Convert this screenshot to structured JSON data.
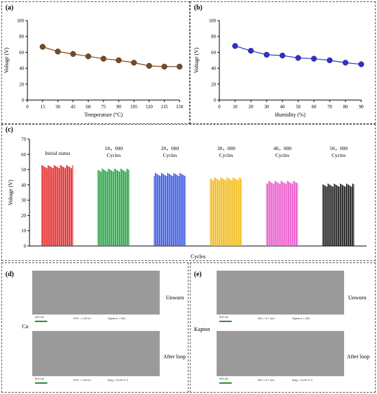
{
  "panels": {
    "a": "(a)",
    "b": "(b)",
    "c": "(c)",
    "d": "(d)",
    "e": "(e)"
  },
  "chart_data": [
    {
      "id": "a",
      "type": "line",
      "xlabel": "Temperature (°C)",
      "ylabel": "Voltage (V)",
      "xlim": [
        0,
        150
      ],
      "ylim": [
        0,
        100
      ],
      "xticks": [
        "0",
        "15",
        "30",
        "45",
        "60",
        "75",
        "90",
        "105",
        "120",
        "135",
        "150"
      ],
      "yticks": [
        "0",
        "20",
        "40",
        "60",
        "80",
        "100"
      ],
      "x": [
        15,
        30,
        45,
        60,
        75,
        90,
        105,
        120,
        135,
        150
      ],
      "y": [
        67,
        61,
        58,
        55,
        52,
        50,
        47,
        43,
        42,
        42
      ],
      "color": "#7a4a1f"
    },
    {
      "id": "b",
      "type": "line",
      "xlabel": "Humidity (%)",
      "ylabel": "Voltage (V)",
      "xlim": [
        0,
        90
      ],
      "ylim": [
        0,
        100
      ],
      "xticks": [
        "0",
        "10",
        "20",
        "30",
        "40",
        "50",
        "60",
        "70",
        "80",
        "90"
      ],
      "yticks": [
        "0",
        "20",
        "40",
        "60",
        "80",
        "100"
      ],
      "x": [
        10,
        20,
        30,
        40,
        50,
        60,
        70,
        80,
        90
      ],
      "y": [
        68,
        62,
        57,
        56,
        53,
        52,
        50,
        47,
        45
      ],
      "color": "#3030d0"
    },
    {
      "id": "c",
      "type": "bar",
      "xlabel": "Cycles",
      "ylabel": "Voltage (V)",
      "ylim": [
        0,
        70
      ],
      "yticks": [
        "0",
        "10",
        "20",
        "30",
        "40",
        "50",
        "60",
        "70"
      ],
      "groups": [
        {
          "label1": "Initial status",
          "label2": "",
          "value": 53,
          "color": "#e21b1b"
        },
        {
          "label1": "10，000",
          "label2": "Cycles",
          "value": 51,
          "color": "#1a9e3a"
        },
        {
          "label1": "20，000",
          "label2": "Cycles",
          "value": 48,
          "color": "#2d4fe0"
        },
        {
          "label1": "30，000",
          "label2": "Cycles",
          "value": 45,
          "color": "#f2b705"
        },
        {
          "label1": "40，000",
          "label2": "Cycles",
          "value": 43,
          "color": "#e84fc8"
        },
        {
          "label1": "50，000",
          "label2": "Cycles",
          "value": 41,
          "color": "#111111"
        }
      ]
    }
  ],
  "sem": {
    "d_material": "Cu",
    "e_material": "Kapton",
    "unworn": "Unworn",
    "after_loop": "After loop",
    "scale": "500 nm",
    "eht": "EHT = 3.00 kV",
    "wd": "WD = 8.7 mm",
    "signal": "Signal A = SE2",
    "mag": "Mag = 20.00 K X"
  }
}
